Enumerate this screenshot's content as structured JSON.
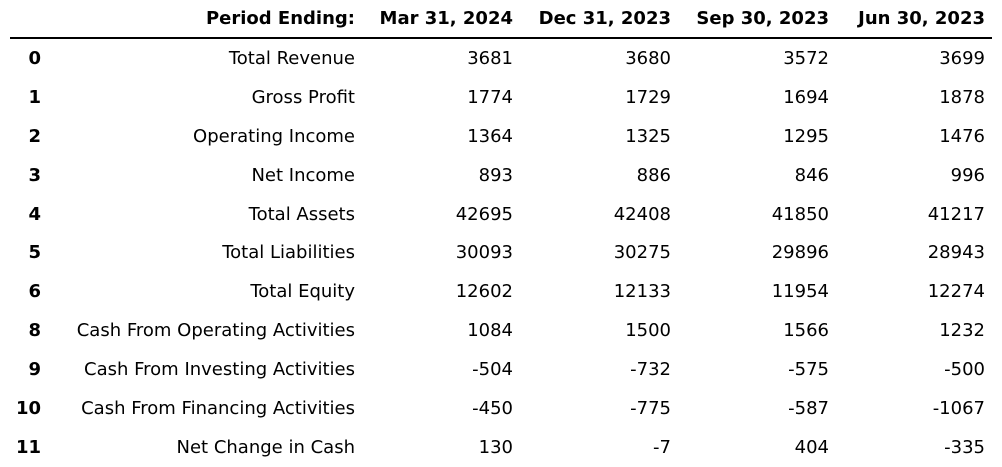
{
  "table": {
    "header_label": "Period Ending:",
    "columns": [
      "Mar 31, 2024",
      "Dec 31, 2023",
      "Sep 30, 2023",
      "Jun 30, 2023"
    ],
    "rows": [
      {
        "index": "0",
        "label": "Total Revenue",
        "values": [
          "3681",
          "3680",
          "3572",
          "3699"
        ]
      },
      {
        "index": "1",
        "label": "Gross Profit",
        "values": [
          "1774",
          "1729",
          "1694",
          "1878"
        ]
      },
      {
        "index": "2",
        "label": "Operating Income",
        "values": [
          "1364",
          "1325",
          "1295",
          "1476"
        ]
      },
      {
        "index": "3",
        "label": "Net Income",
        "values": [
          "893",
          "886",
          "846",
          "996"
        ]
      },
      {
        "index": "4",
        "label": "Total Assets",
        "values": [
          "42695",
          "42408",
          "41850",
          "41217"
        ]
      },
      {
        "index": "5",
        "label": "Total Liabilities",
        "values": [
          "30093",
          "30275",
          "29896",
          "28943"
        ]
      },
      {
        "index": "6",
        "label": "Total Equity",
        "values": [
          "12602",
          "12133",
          "11954",
          "12274"
        ]
      },
      {
        "index": "8",
        "label": "Cash From Operating Activities",
        "values": [
          "1084",
          "1500",
          "1566",
          "1232"
        ]
      },
      {
        "index": "9",
        "label": "Cash From Investing Activities",
        "values": [
          "-504",
          "-732",
          "-575",
          "-500"
        ]
      },
      {
        "index": "10",
        "label": "Cash From Financing Activities",
        "values": [
          "-450",
          "-775",
          "-587",
          "-1067"
        ]
      },
      {
        "index": "11",
        "label": "Net Change in Cash",
        "values": [
          "130",
          "-7",
          "404",
          "-335"
        ]
      }
    ]
  }
}
